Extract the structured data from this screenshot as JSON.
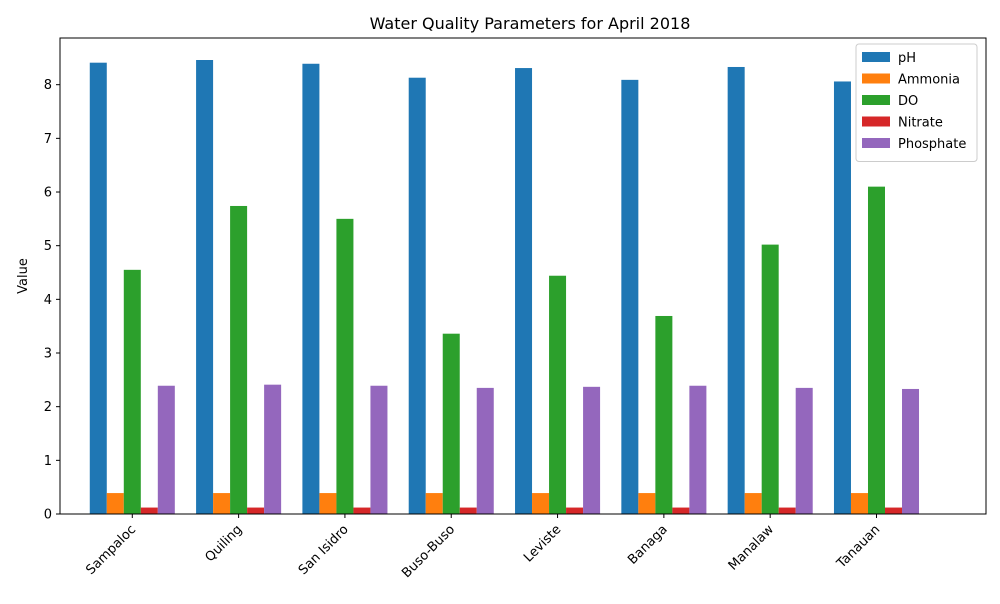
{
  "chart_data": {
    "type": "bar",
    "title": "Water Quality Parameters for April 2018",
    "xlabel": "",
    "ylabel": "Value",
    "ylim": [
      0,
      8.87
    ],
    "yticks": [
      0,
      1,
      2,
      3,
      4,
      5,
      6,
      7,
      8
    ],
    "legend_position": "top-right",
    "categories": [
      "Sampaloc",
      "Quiling",
      "San Isidro",
      "Buso-Buso",
      "Leviste",
      "Banaga",
      "Manalaw",
      "Tanauan"
    ],
    "series": [
      {
        "name": "pH",
        "color": "#1f77b4",
        "values": [
          8.41,
          8.46,
          8.39,
          8.13,
          8.31,
          8.09,
          8.33,
          8.06
        ]
      },
      {
        "name": "Ammonia",
        "color": "#ff7f0e",
        "values": [
          0.39,
          0.39,
          0.39,
          0.39,
          0.39,
          0.39,
          0.39,
          0.39
        ]
      },
      {
        "name": "DO",
        "color": "#2ca02c",
        "values": [
          4.55,
          5.74,
          5.5,
          3.36,
          4.44,
          3.69,
          5.02,
          6.1
        ]
      },
      {
        "name": "Nitrate",
        "color": "#d62728",
        "values": [
          0.12,
          0.12,
          0.12,
          0.12,
          0.12,
          0.12,
          0.12,
          0.12
        ]
      },
      {
        "name": "Phosphate",
        "color": "#9467bd",
        "values": [
          2.39,
          2.41,
          2.39,
          2.35,
          2.37,
          2.39,
          2.35,
          2.33
        ]
      }
    ]
  }
}
